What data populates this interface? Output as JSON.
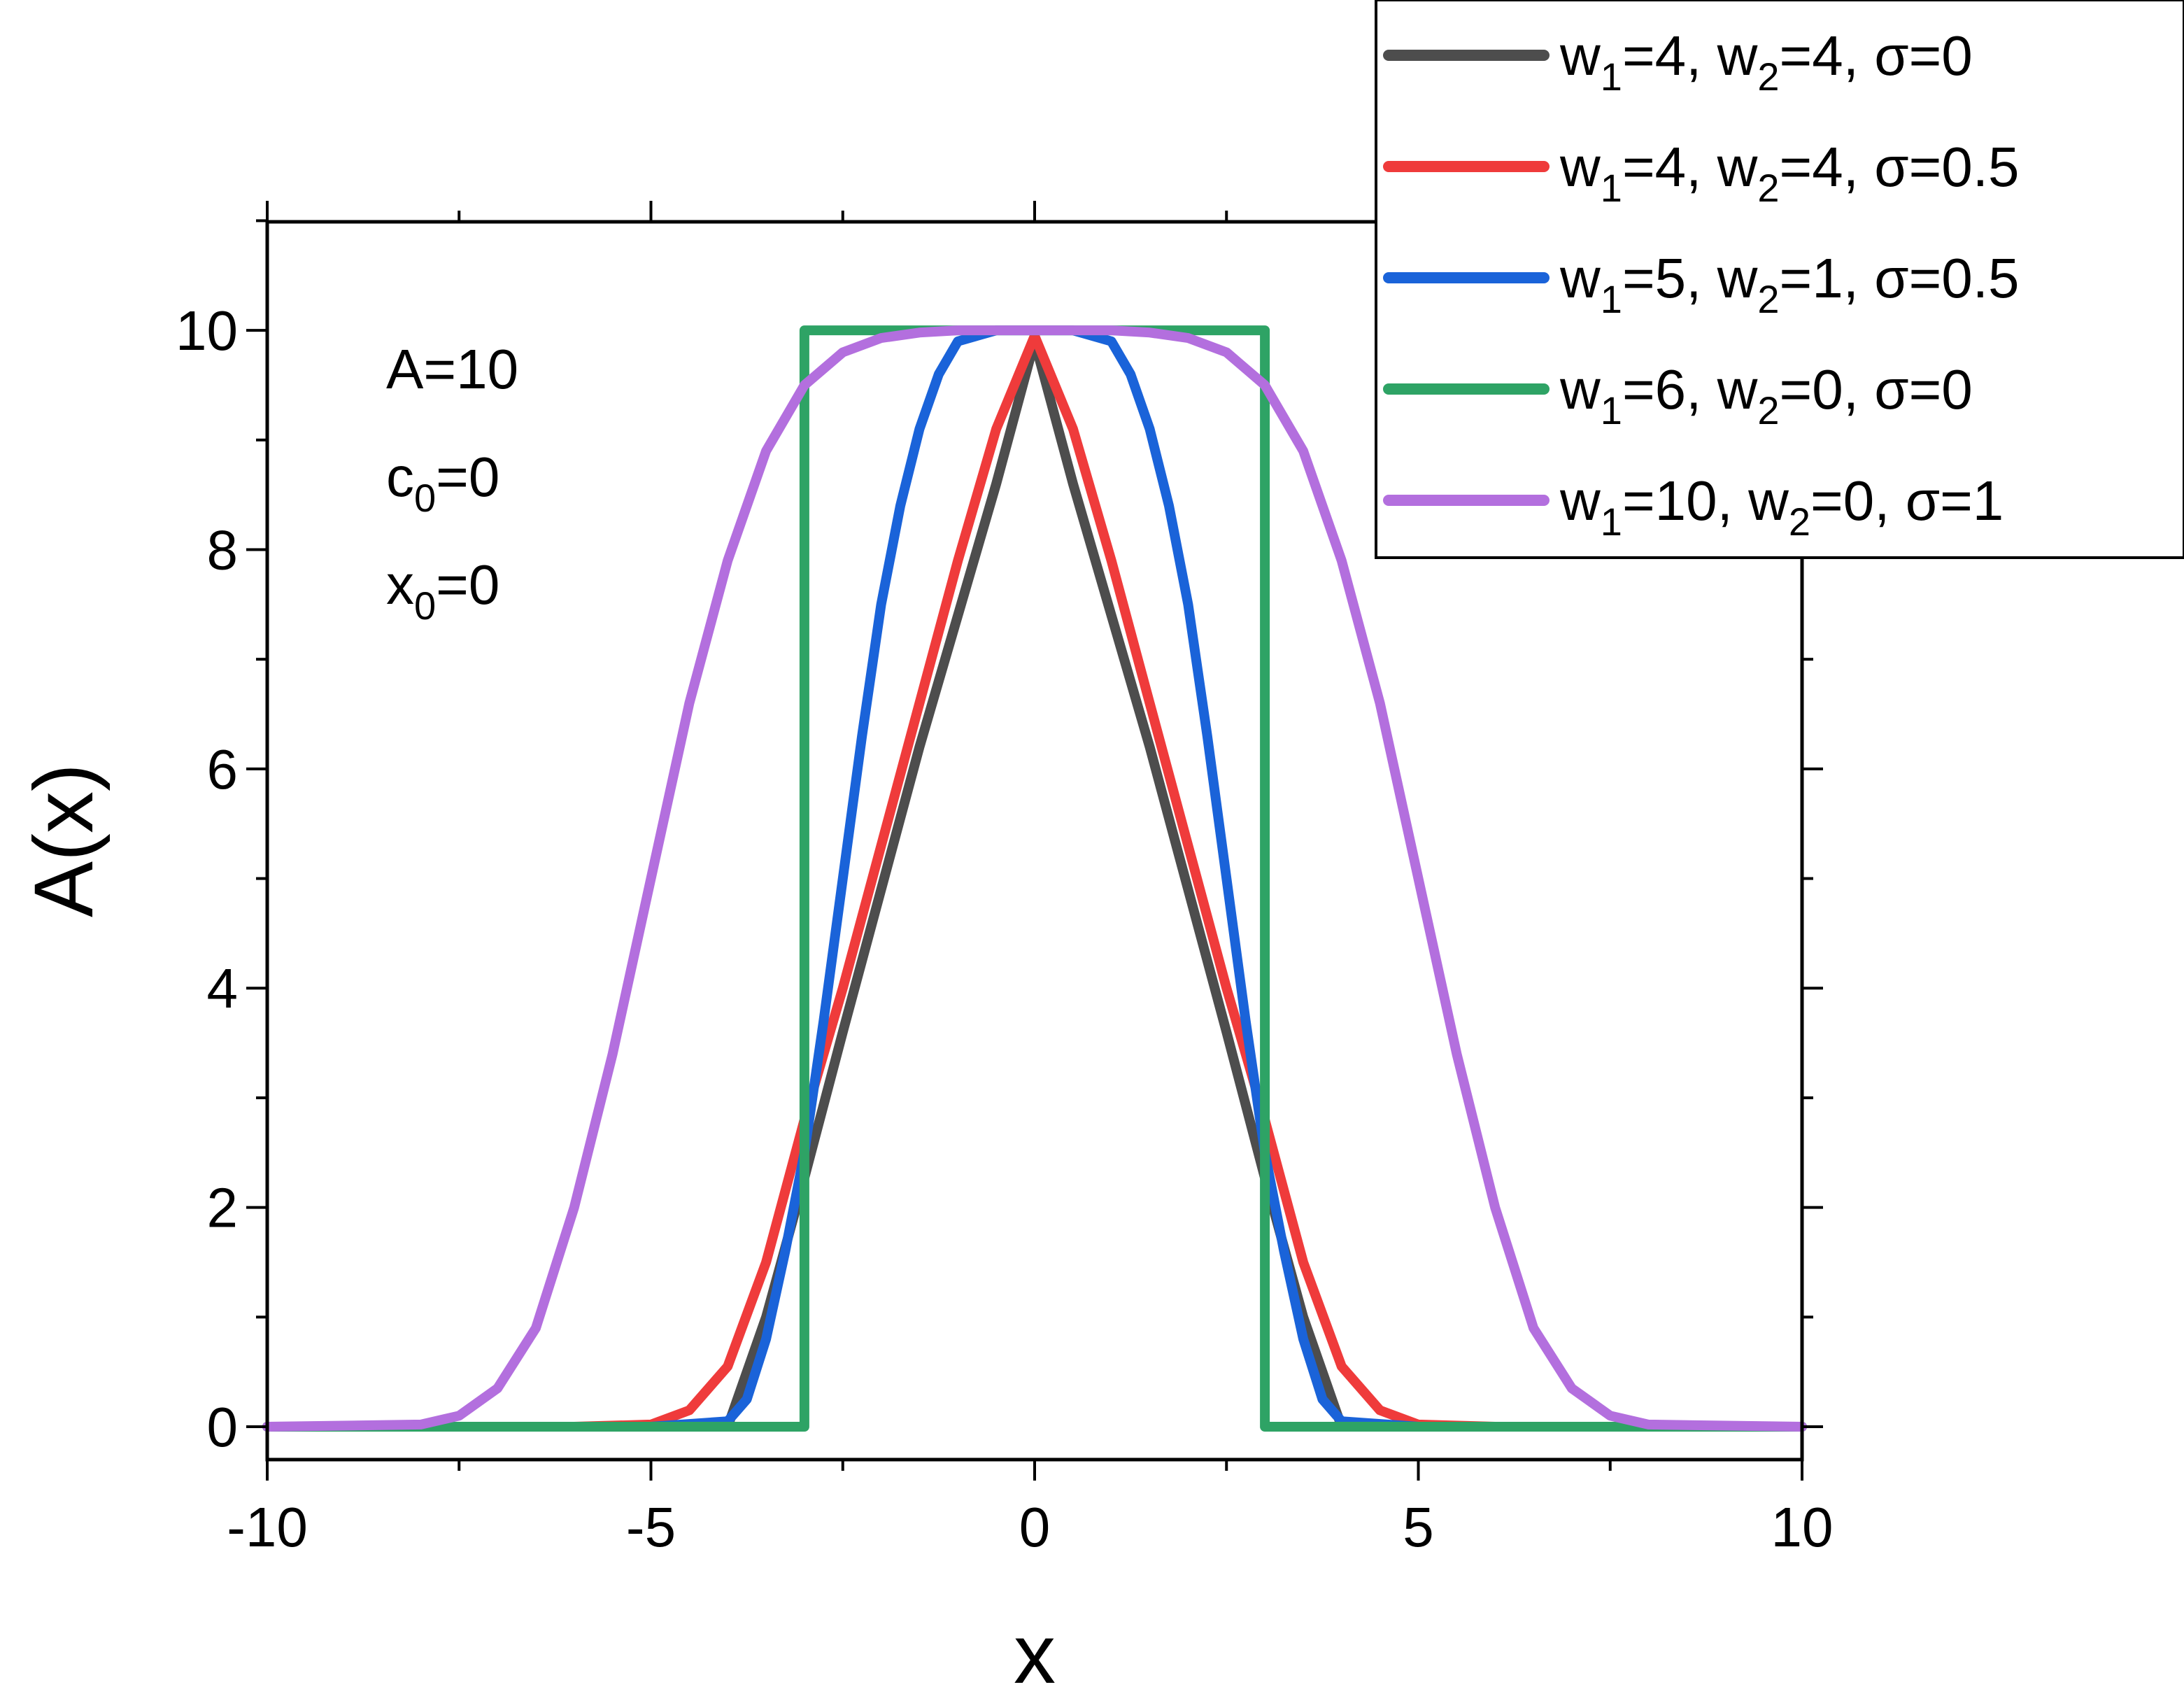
{
  "chart_data": {
    "type": "line",
    "title": "",
    "xlabel": "x",
    "ylabel": "A(x)",
    "xlim": [
      -10,
      10
    ],
    "ylim": [
      -0.3,
      10.99
    ],
    "xticks": [
      -10,
      -5,
      0,
      5,
      10
    ],
    "xtick_labels": [
      "-10",
      "-5",
      "0",
      "5",
      "10"
    ],
    "yticks": [
      0,
      2,
      4,
      6,
      8,
      10
    ],
    "ytick_labels": [
      "0",
      "2",
      "4",
      "6",
      "8",
      "10"
    ],
    "grid": false,
    "legend_placement": "top-right",
    "annotation": [
      {
        "base": "A",
        "sub": "",
        "rest": "=10"
      },
      {
        "base": "c",
        "sub": "0",
        "rest": "=0"
      },
      {
        "base": "x",
        "sub": "0",
        "rest": "=0"
      }
    ],
    "series": [
      {
        "name": "w1=4, w2=4, σ=0",
        "legend_parts": [
          "w",
          "1",
          "=4,   w",
          "2",
          "=4, σ=0"
        ],
        "color": "#4d4d4d",
        "x": [
          -10,
          -4,
          -3.5,
          -3,
          -2.5,
          -2,
          -1.5,
          -1,
          -0.5,
          0,
          0.5,
          1,
          1.5,
          2,
          2.5,
          3,
          3.5,
          4,
          10
        ],
        "y": [
          0,
          0,
          1.0,
          2.27,
          3.6,
          4.9,
          6.2,
          7.4,
          8.6,
          9.9,
          8.6,
          7.4,
          6.2,
          4.9,
          3.6,
          2.27,
          1.0,
          0,
          0
        ]
      },
      {
        "name": "w1=4, w2=4, σ=0.5",
        "legend_parts": [
          "w",
          "1",
          "=4,   w",
          "2",
          "=4, σ=0.5"
        ],
        "color": "#ef3b3b",
        "x": [
          -10,
          -6,
          -5,
          -4.5,
          -4,
          -3.5,
          -3,
          -2.5,
          -2,
          -1.5,
          -1,
          -0.5,
          0,
          0.5,
          1,
          1.5,
          2,
          2.5,
          3,
          3.5,
          4,
          4.5,
          5,
          6,
          10
        ],
        "y": [
          0,
          0,
          0.02,
          0.15,
          0.55,
          1.5,
          2.8,
          4.0,
          5.3,
          6.6,
          7.9,
          9.1,
          9.95,
          9.1,
          7.9,
          6.6,
          5.3,
          4.0,
          2.8,
          1.5,
          0.55,
          0.15,
          0.02,
          0,
          0
        ]
      },
      {
        "name": "w1=5, w2=1, σ=0.5",
        "legend_parts": [
          "w",
          "1",
          "=5,   w",
          "2",
          "=1, σ=0.5"
        ],
        "color": "#1a63d9",
        "x": [
          -10,
          -5,
          -4,
          -3.75,
          -3.5,
          -3.25,
          -3,
          -2.75,
          -2.5,
          -2.25,
          -2,
          -1.75,
          -1.5,
          -1.25,
          -1,
          -0.5,
          0,
          0.5,
          1,
          1.25,
          1.5,
          1.75,
          2,
          2.25,
          2.5,
          2.75,
          3,
          3.25,
          3.5,
          3.75,
          4,
          5,
          10
        ],
        "y": [
          0,
          0,
          0.05,
          0.25,
          0.8,
          1.6,
          2.5,
          3.7,
          5.0,
          6.3,
          7.5,
          8.4,
          9.1,
          9.6,
          9.9,
          10,
          10,
          10,
          9.9,
          9.6,
          9.1,
          8.4,
          7.5,
          6.3,
          5.0,
          3.7,
          2.5,
          1.6,
          0.8,
          0.25,
          0.05,
          0,
          0
        ]
      },
      {
        "name": "w1=6, w2=0, σ=0",
        "legend_parts": [
          "w",
          "1",
          "=6,   w",
          "2",
          "=0, σ=0"
        ],
        "color": "#2ea365",
        "x": [
          -10,
          -3,
          -3,
          3,
          3,
          10
        ],
        "y": [
          0,
          0,
          10,
          10,
          0,
          0
        ]
      },
      {
        "name": "w1=10, w2=0, σ=1",
        "legend_parts": [
          "w",
          "1",
          "=10, w",
          "2",
          "=0, σ=1"
        ],
        "color": "#b36fde",
        "x": [
          -10,
          -8,
          -7.5,
          -7,
          -6.5,
          -6,
          -5.5,
          -5,
          -4.5,
          -4,
          -3.5,
          -3,
          -2.5,
          -2,
          -1.5,
          -1,
          0,
          1,
          1.5,
          2,
          2.5,
          3,
          3.5,
          4,
          4.5,
          5,
          5.5,
          6,
          6.5,
          7,
          7.5,
          8,
          10
        ],
        "y": [
          0,
          0.02,
          0.1,
          0.35,
          0.9,
          2.0,
          3.4,
          5.0,
          6.6,
          7.9,
          8.9,
          9.5,
          9.8,
          9.93,
          9.98,
          10,
          10,
          10,
          9.98,
          9.93,
          9.8,
          9.5,
          8.9,
          7.9,
          6.6,
          5.0,
          3.4,
          2.0,
          0.9,
          0.35,
          0.1,
          0.02,
          0
        ]
      }
    ]
  }
}
